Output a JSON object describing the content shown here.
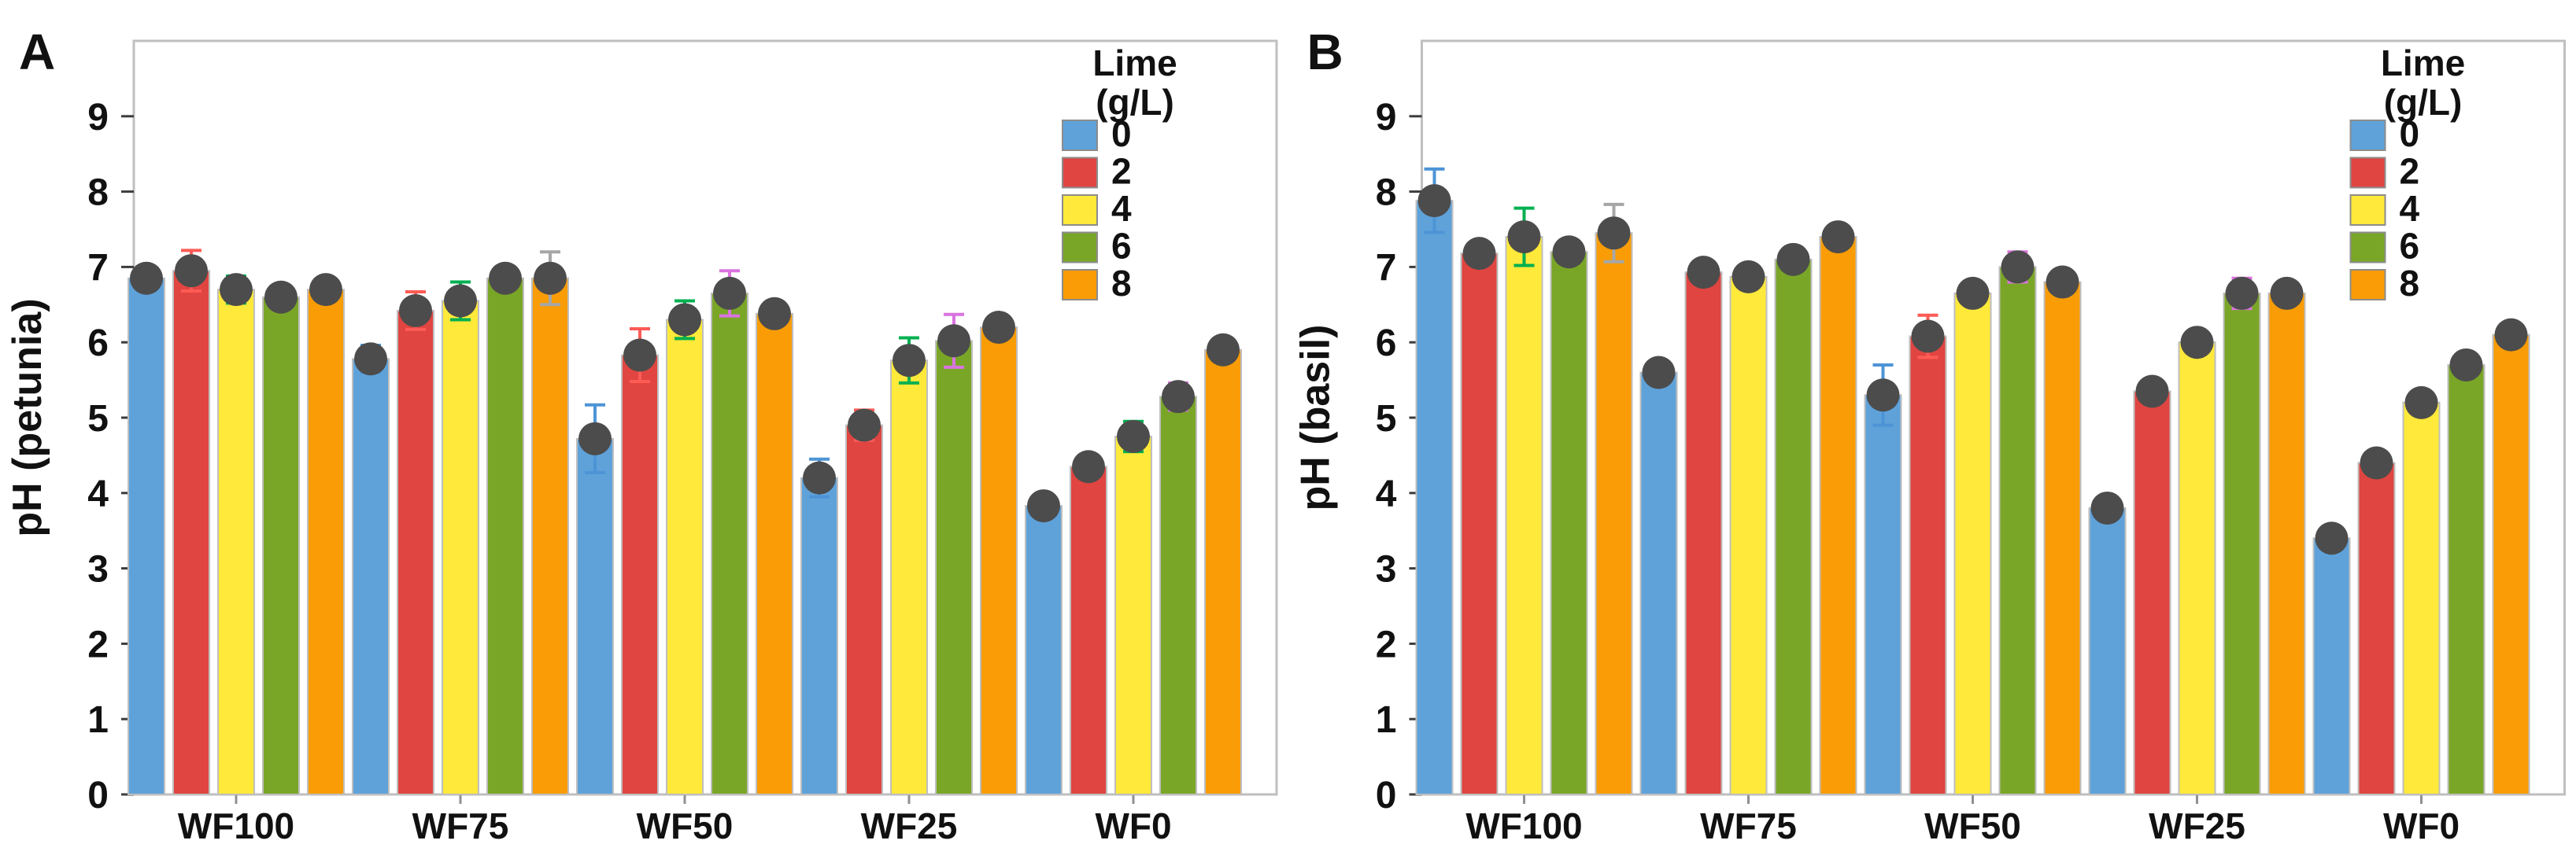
{
  "figure": {
    "background": "#ffffff",
    "panel_letters": [
      "A",
      "B"
    ]
  },
  "style": {
    "bar_colors": [
      "#5FA2DA",
      "#E04541",
      "#FFE93A",
      "#7AA628",
      "#F99C06"
    ],
    "error_colors": [
      "#4D94D6",
      "#FF5B55",
      "#00B050",
      "#D973DE",
      "#A6A6A6"
    ],
    "dot_color": "#4C4C4C",
    "frame_color": "#BFBFBF",
    "tick_color": "#3C3C3C",
    "bar_outline_color": "#BEBEBE",
    "swatch_outline_color": "#8C8C8C"
  },
  "chart_data": [
    {
      "type": "bar",
      "panel": "A",
      "letter": "A",
      "title": "",
      "xlabel": "",
      "ylabel": "pH (petunia)",
      "ylim": [
        0,
        10
      ],
      "yticks": [
        0,
        1,
        2,
        3,
        4,
        5,
        6,
        7,
        8,
        9
      ],
      "grid": false,
      "categories": [
        "WF100",
        "WF75",
        "WF50",
        "WF25",
        "WF0"
      ],
      "legend": {
        "title_lines": [
          "Lime",
          "(g/L)"
        ],
        "entries": [
          "0",
          "2",
          "4",
          "6",
          "8"
        ],
        "position": "top-right-inside"
      },
      "series": [
        {
          "name": "0",
          "values": [
            6.85,
            5.78,
            4.72,
            4.2,
            3.83
          ],
          "errors": [
            0.12,
            0.18,
            0.45,
            0.25,
            0.12
          ]
        },
        {
          "name": "2",
          "values": [
            6.95,
            6.42,
            5.83,
            4.9,
            4.35
          ],
          "errors": [
            0.27,
            0.25,
            0.35,
            0.2,
            0.1
          ]
        },
        {
          "name": "4",
          "values": [
            6.7,
            6.55,
            6.3,
            5.76,
            4.75
          ],
          "errors": [
            0.18,
            0.25,
            0.25,
            0.3,
            0.2
          ]
        },
        {
          "name": "6",
          "values": [
            6.6,
            6.85,
            6.65,
            6.02,
            5.28
          ],
          "errors": [
            0.06,
            0.1,
            0.3,
            0.35,
            0.18
          ]
        },
        {
          "name": "8",
          "values": [
            6.7,
            6.85,
            6.38,
            6.2,
            5.9
          ],
          "errors": [
            0.06,
            0.35,
            0.1,
            0.15,
            0.15
          ]
        }
      ]
    },
    {
      "type": "bar",
      "panel": "B",
      "letter": "B",
      "title": "",
      "xlabel": "",
      "ylabel": "pH (basil)",
      "ylim": [
        0,
        10
      ],
      "yticks": [
        0,
        1,
        2,
        3,
        4,
        5,
        6,
        7,
        8,
        9
      ],
      "grid": false,
      "categories": [
        "WF100",
        "WF75",
        "WF50",
        "WF25",
        "WF0"
      ],
      "legend": {
        "title_lines": [
          "Lime",
          "(g/L)"
        ],
        "entries": [
          "0",
          "2",
          "4",
          "6",
          "8"
        ],
        "position": "top-right-inside"
      },
      "series": [
        {
          "name": "0",
          "values": [
            7.88,
            5.6,
            5.3,
            3.8,
            3.4
          ],
          "errors": [
            0.42,
            0.12,
            0.4,
            0.1,
            0.08
          ]
        },
        {
          "name": "2",
          "values": [
            7.18,
            6.93,
            6.08,
            5.35,
            4.4
          ],
          "errors": [
            0.08,
            0.06,
            0.28,
            0.15,
            0.06
          ]
        },
        {
          "name": "4",
          "values": [
            7.4,
            6.87,
            6.65,
            6.0,
            5.2
          ],
          "errors": [
            0.38,
            0.06,
            0.15,
            0.1,
            0.15
          ]
        },
        {
          "name": "6",
          "values": [
            7.2,
            7.1,
            7.0,
            6.65,
            5.7
          ],
          "errors": [
            0.08,
            0.12,
            0.2,
            0.2,
            0.1
          ]
        },
        {
          "name": "8",
          "values": [
            7.45,
            7.4,
            6.8,
            6.65,
            6.1
          ],
          "errors": [
            0.38,
            0.08,
            0.06,
            0.06,
            0.06
          ]
        }
      ]
    }
  ]
}
